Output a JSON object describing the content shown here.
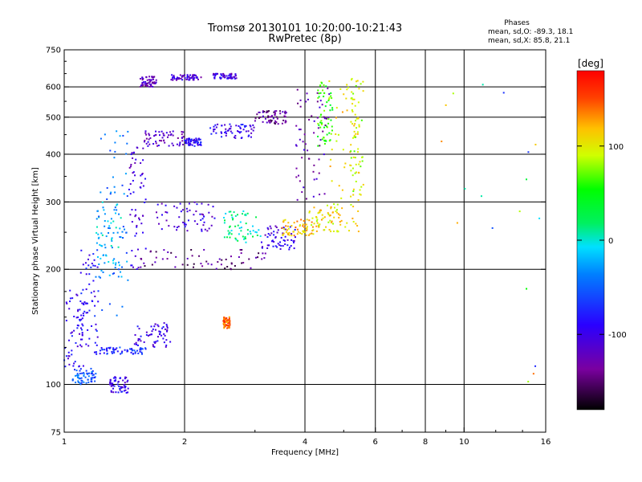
{
  "chart_data": {
    "type": "scatter",
    "title": "Tromsø 20130101 10:20:00-10:21:43",
    "subtitle": "RwPretec (8p)",
    "xlabel": "Frequency [MHz]",
    "ylabel": "Stationary phase Virtual Height [km]",
    "x_scale": "log",
    "y_scale": "log",
    "xlim": [
      1,
      16
    ],
    "ylim": [
      75,
      750
    ],
    "x_ticks": [
      1,
      2,
      4,
      6,
      8,
      10,
      16
    ],
    "x_tick_labels": [
      "1",
      "2",
      "4",
      "6",
      "8",
      "10",
      "16"
    ],
    "y_ticks": [
      75,
      100,
      200,
      300,
      400,
      500,
      600,
      750
    ],
    "y_tick_labels": [
      "75",
      "100",
      "200",
      "300",
      "400",
      "500",
      "600",
      "750"
    ],
    "grid": true,
    "stats_header": "Phases",
    "stats_lines": [
      "mean, sd,O: -89.3, 18.1",
      "mean, sd,X: 85.8, 21.1"
    ],
    "colorbar": {
      "label": "[deg]",
      "range": [
        -180,
        180
      ],
      "ticks": [
        100,
        0,
        -100
      ],
      "tick_labels": [
        "100",
        "0",
        "-100"
      ]
    },
    "point_groups": [
      {
        "f": [
          1.05,
          1.2
        ],
        "h": [
          100,
          110
        ],
        "phase": -55
      },
      {
        "f": [
          1.0,
          1.12
        ],
        "h": [
          110,
          180
        ],
        "phase": -95
      },
      {
        "f": [
          1.1,
          1.22
        ],
        "h": [
          120,
          230
        ],
        "phase": -85
      },
      {
        "f": [
          1.2,
          1.6
        ],
        "h": [
          120,
          125
        ],
        "phase": -75
      },
      {
        "f": [
          1.2,
          1.4
        ],
        "h": [
          190,
          300
        ],
        "phase": -15
      },
      {
        "f": [
          1.22,
          1.45
        ],
        "h": [
          150,
          480
        ],
        "phase": -40
      },
      {
        "f": [
          1.3,
          1.45
        ],
        "h": [
          95,
          105
        ],
        "phase": -95
      },
      {
        "f": [
          1.45,
          1.6
        ],
        "h": [
          200,
          420
        ],
        "phase": -105
      },
      {
        "f": [
          1.55,
          1.7
        ],
        "h": [
          600,
          640
        ],
        "phase": -120
      },
      {
        "f": [
          1.58,
          2.0
        ],
        "h": [
          420,
          460
        ],
        "phase": -115
      },
      {
        "f": [
          1.5,
          1.85
        ],
        "h": [
          125,
          145
        ],
        "phase": -100
      },
      {
        "f": [
          1.85,
          2.2
        ],
        "h": [
          625,
          645
        ],
        "phase": -110
      },
      {
        "f": [
          2.35,
          2.7
        ],
        "h": [
          630,
          650
        ],
        "phase": -105
      },
      {
        "f": [
          2.0,
          2.2
        ],
        "h": [
          420,
          440
        ],
        "phase": -90
      },
      {
        "f": [
          2.3,
          3.0
        ],
        "h": [
          440,
          480
        ],
        "phase": -95
      },
      {
        "f": [
          3.0,
          3.6
        ],
        "h": [
          480,
          520
        ],
        "phase": -135
      },
      {
        "f": [
          1.7,
          2.4
        ],
        "h": [
          250,
          300
        ],
        "phase": -105
      },
      {
        "f": [
          2.5,
          3.1
        ],
        "h": [
          235,
          285
        ],
        "phase": 10
      },
      {
        "f": [
          2.5,
          2.6
        ],
        "h": [
          140,
          150
        ],
        "phase": 140
      },
      {
        "f": [
          1.5,
          3.2
        ],
        "h": [
          200,
          225
        ],
        "phase": -140
      },
      {
        "f": [
          3.1,
          3.8
        ],
        "h": [
          225,
          260
        ],
        "phase": -100
      },
      {
        "f": [
          3.5,
          4.2
        ],
        "h": [
          245,
          270
        ],
        "phase": 120
      },
      {
        "f": [
          4.1,
          4.9
        ],
        "h": [
          250,
          300
        ],
        "phase": 105
      },
      {
        "f": [
          3.8,
          4.6
        ],
        "h": [
          300,
          600
        ],
        "phase": -125
      },
      {
        "f": [
          4.3,
          4.7
        ],
        "h": [
          420,
          620
        ],
        "phase": 60
      },
      {
        "f": [
          4.6,
          5.5
        ],
        "h": [
          250,
          650
        ],
        "phase": 105
      },
      {
        "f": [
          5.2,
          5.6
        ],
        "h": [
          300,
          640
        ],
        "phase": 90
      },
      {
        "f": [
          8.5,
          16.0
        ],
        "h": [
          100,
          650
        ],
        "phase": 30
      }
    ]
  }
}
